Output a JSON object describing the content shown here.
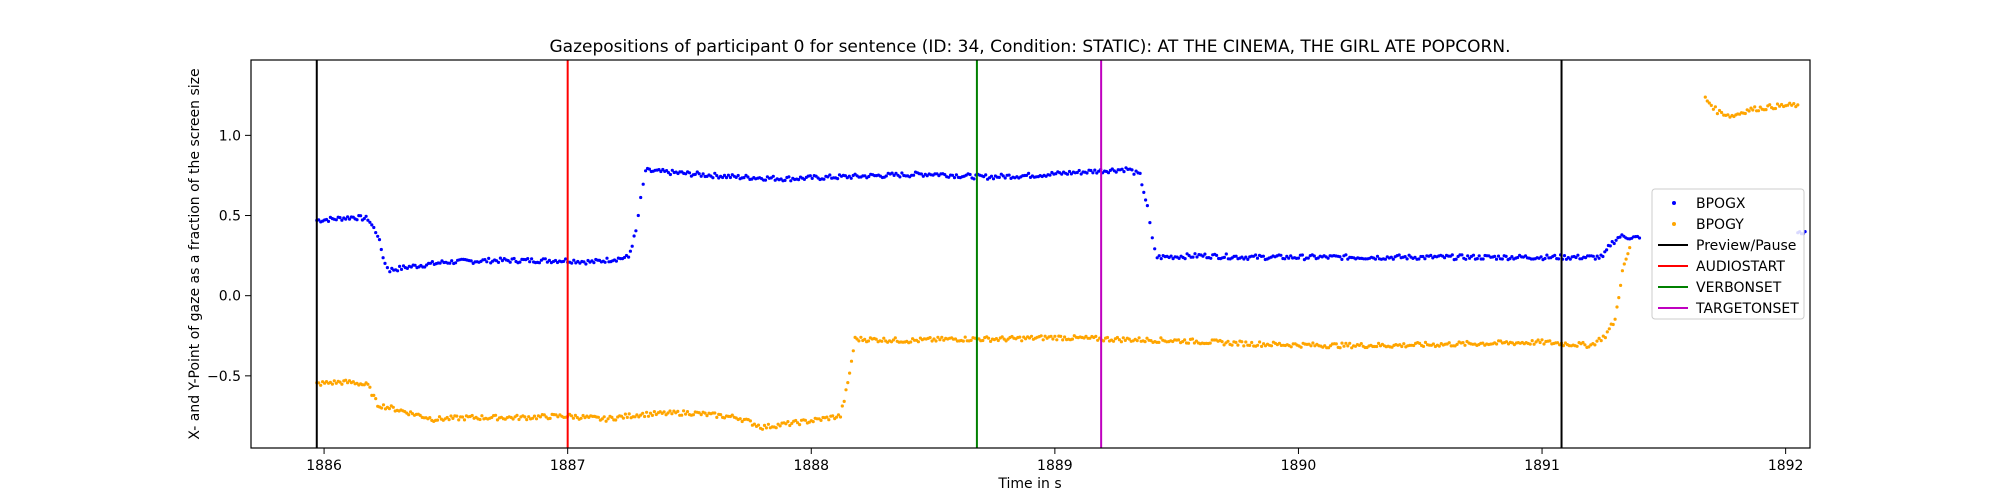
{
  "chart_data": {
    "type": "scatter",
    "title": "Gazepositions of participant 0 for sentence (ID: 34, Condition: STATIC):  AT THE CINEMA, THE GIRL ATE POPCORN.",
    "xlabel": "Time in s",
    "ylabel": "X- and Y-Point of gaze as a fraction of the screen size",
    "xlim": [
      1885.7,
      1892.1
    ],
    "ylim": [
      -0.95,
      1.47
    ],
    "x_ticks": [
      1886,
      1887,
      1888,
      1889,
      1890,
      1891,
      1892
    ],
    "y_ticks": [
      -0.5,
      0.0,
      0.5,
      1.0
    ],
    "x_tick_labels": [
      "1886",
      "1887",
      "1888",
      "1889",
      "1890",
      "1891",
      "1892"
    ],
    "y_tick_labels": [
      "−0.5",
      "0.0",
      "0.5",
      "1.0"
    ],
    "grid": false,
    "legend_position": "right",
    "series": [
      {
        "name": "BPOGX",
        "color": "#0000ff",
        "marker": "dot",
        "points": [
          [
            1885.97,
            0.47
          ],
          [
            1886.05,
            0.48
          ],
          [
            1886.12,
            0.49
          ],
          [
            1886.18,
            0.48
          ],
          [
            1886.22,
            0.38
          ],
          [
            1886.25,
            0.2
          ],
          [
            1886.27,
            0.16
          ],
          [
            1886.35,
            0.18
          ],
          [
            1886.5,
            0.21
          ],
          [
            1886.7,
            0.22
          ],
          [
            1886.9,
            0.22
          ],
          [
            1887.0,
            0.22
          ],
          [
            1887.1,
            0.21
          ],
          [
            1887.2,
            0.23
          ],
          [
            1887.25,
            0.24
          ],
          [
            1887.28,
            0.4
          ],
          [
            1887.3,
            0.6
          ],
          [
            1887.32,
            0.78
          ],
          [
            1887.5,
            0.76
          ],
          [
            1887.7,
            0.74
          ],
          [
            1887.9,
            0.73
          ],
          [
            1888.1,
            0.74
          ],
          [
            1888.3,
            0.75
          ],
          [
            1888.5,
            0.76
          ],
          [
            1888.7,
            0.74
          ],
          [
            1888.9,
            0.75
          ],
          [
            1889.1,
            0.77
          ],
          [
            1889.3,
            0.79
          ],
          [
            1889.35,
            0.75
          ],
          [
            1889.38,
            0.55
          ],
          [
            1889.4,
            0.35
          ],
          [
            1889.42,
            0.24
          ],
          [
            1889.6,
            0.25
          ],
          [
            1889.8,
            0.24
          ],
          [
            1890.0,
            0.24
          ],
          [
            1890.3,
            0.24
          ],
          [
            1890.6,
            0.24
          ],
          [
            1890.9,
            0.24
          ],
          [
            1891.1,
            0.24
          ],
          [
            1891.25,
            0.24
          ],
          [
            1891.28,
            0.32
          ],
          [
            1891.32,
            0.37
          ],
          [
            1891.4,
            0.36
          ]
        ]
      },
      {
        "name": "BPOGY",
        "color": "#ffa500",
        "marker": "dot",
        "points": [
          [
            1885.97,
            -0.55
          ],
          [
            1886.05,
            -0.54
          ],
          [
            1886.12,
            -0.54
          ],
          [
            1886.18,
            -0.56
          ],
          [
            1886.22,
            -0.68
          ],
          [
            1886.3,
            -0.71
          ],
          [
            1886.45,
            -0.77
          ],
          [
            1886.6,
            -0.76
          ],
          [
            1886.8,
            -0.76
          ],
          [
            1887.0,
            -0.75
          ],
          [
            1887.15,
            -0.77
          ],
          [
            1887.3,
            -0.74
          ],
          [
            1887.5,
            -0.73
          ],
          [
            1887.7,
            -0.76
          ],
          [
            1887.8,
            -0.82
          ],
          [
            1888.0,
            -0.78
          ],
          [
            1888.12,
            -0.75
          ],
          [
            1888.15,
            -0.55
          ],
          [
            1888.18,
            -0.27
          ],
          [
            1888.4,
            -0.28
          ],
          [
            1888.6,
            -0.27
          ],
          [
            1888.8,
            -0.27
          ],
          [
            1889.0,
            -0.26
          ],
          [
            1889.2,
            -0.27
          ],
          [
            1889.5,
            -0.28
          ],
          [
            1889.8,
            -0.3
          ],
          [
            1890.1,
            -0.31
          ],
          [
            1890.4,
            -0.31
          ],
          [
            1890.7,
            -0.3
          ],
          [
            1891.0,
            -0.29
          ],
          [
            1891.2,
            -0.31
          ],
          [
            1891.26,
            -0.25
          ],
          [
            1891.3,
            -0.15
          ],
          [
            1891.33,
            0.15
          ],
          [
            1891.36,
            0.3
          ]
        ]
      },
      {
        "name": "BPOGY",
        "color": "#ffa500",
        "marker": "dot",
        "legend": false,
        "points": [
          [
            1891.67,
            1.23
          ],
          [
            1891.72,
            1.15
          ],
          [
            1891.78,
            1.12
          ],
          [
            1891.85,
            1.16
          ],
          [
            1891.95,
            1.18
          ],
          [
            1892.05,
            1.19
          ]
        ]
      }
    ],
    "blue_tail": [
      [
        1892.05,
        0.38
      ],
      [
        1892.08,
        0.4
      ]
    ],
    "vlines": [
      {
        "name": "Preview/Pause",
        "x": 1885.97,
        "color": "#000000"
      },
      {
        "name": "AUDIOSTART",
        "x": 1887.0,
        "color": "#ff0000"
      },
      {
        "name": "VERBONSET",
        "x": 1888.68,
        "color": "#008000"
      },
      {
        "name": "TARGETONSET",
        "x": 1889.19,
        "color": "#bf00bf"
      },
      {
        "name": "Preview/Pause",
        "x": 1891.08,
        "color": "#000000",
        "legend": false
      }
    ],
    "legend": [
      {
        "label": "BPOGX",
        "kind": "dot",
        "color": "#0000ff"
      },
      {
        "label": "BPOGY",
        "kind": "dot",
        "color": "#ffa500"
      },
      {
        "label": "Preview/Pause",
        "kind": "line",
        "color": "#000000"
      },
      {
        "label": "AUDIOSTART",
        "kind": "line",
        "color": "#ff0000"
      },
      {
        "label": "VERBONSET",
        "kind": "line",
        "color": "#008000"
      },
      {
        "label": "TARGETONSET",
        "kind": "line",
        "color": "#bf00bf"
      }
    ]
  }
}
